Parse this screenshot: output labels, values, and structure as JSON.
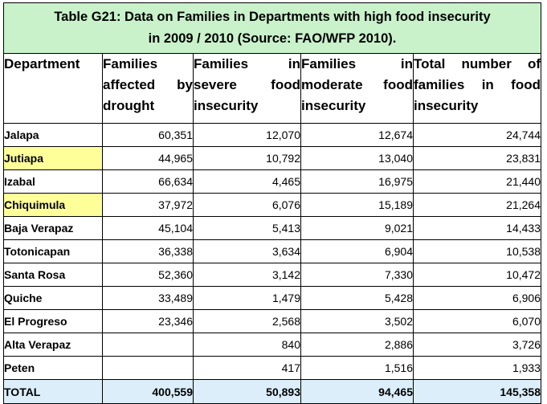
{
  "table": {
    "title_line1": "Table G21:  Data on Families in Departments with high food insecurity",
    "title_line2": "in 2009 / 2010 (Source: FAO/WFP 2010).",
    "headers": [
      {
        "lines": [
          "Department"
        ]
      },
      {
        "lines": [
          "Families",
          "affected by",
          "drought"
        ]
      },
      {
        "lines": [
          "Families in",
          "severe food",
          "insecurity"
        ]
      },
      {
        "lines": [
          "Families in",
          "moderate food",
          "insecurity"
        ]
      },
      {
        "lines": [
          "Total number of",
          "families in food",
          "insecurity"
        ]
      }
    ],
    "rows": [
      {
        "department": "Jalapa",
        "drought": "60,351",
        "severe": "12,070",
        "moderate": "12,674",
        "total": "24,744",
        "highlight": false
      },
      {
        "department": "Jutiapa",
        "drought": "44,965",
        "severe": "10,792",
        "moderate": "13,040",
        "total": "23,831",
        "highlight": true
      },
      {
        "department": "Izabal",
        "drought": "66,634",
        "severe": "4,465",
        "moderate": "16,975",
        "total": "21,440",
        "highlight": false
      },
      {
        "department": "Chiquimula",
        "drought": "37,972",
        "severe": "6,076",
        "moderate": "15,189",
        "total": "21,264",
        "highlight": true
      },
      {
        "department": "Baja Verapaz",
        "drought": "45,104",
        "severe": "5,413",
        "moderate": "9,021",
        "total": "14,433",
        "highlight": false
      },
      {
        "department": "Totonicapan",
        "drought": "36,338",
        "severe": "3,634",
        "moderate": "6,904",
        "total": "10,538",
        "highlight": false
      },
      {
        "department": "Santa Rosa",
        "drought": "52,360",
        "severe": "3,142",
        "moderate": "7,330",
        "total": "10,472",
        "highlight": false
      },
      {
        "department": "Quiche",
        "drought": "33,489",
        "severe": "1,479",
        "moderate": "5,428",
        "total": "6,906",
        "highlight": false
      },
      {
        "department": "El Progreso",
        "drought": "23,346",
        "severe": "2,568",
        "moderate": "3,502",
        "total": "6,070",
        "highlight": false
      },
      {
        "department": "Alta Verapaz",
        "drought": "",
        "severe": "840",
        "moderate": "2,886",
        "total": "3,726",
        "highlight": false
      },
      {
        "department": "Peten",
        "drought": "",
        "severe": "417",
        "moderate": "1,516",
        "total": "1,933",
        "highlight": false
      }
    ],
    "total_row": {
      "label": "TOTAL",
      "drought": "400,559",
      "severe": "50,893",
      "moderate": "94,465",
      "total": "145,358"
    }
  },
  "colors": {
    "title_background": "#c9f2cb",
    "highlight_background": "#ffff99",
    "total_background": "#dbeef9"
  }
}
